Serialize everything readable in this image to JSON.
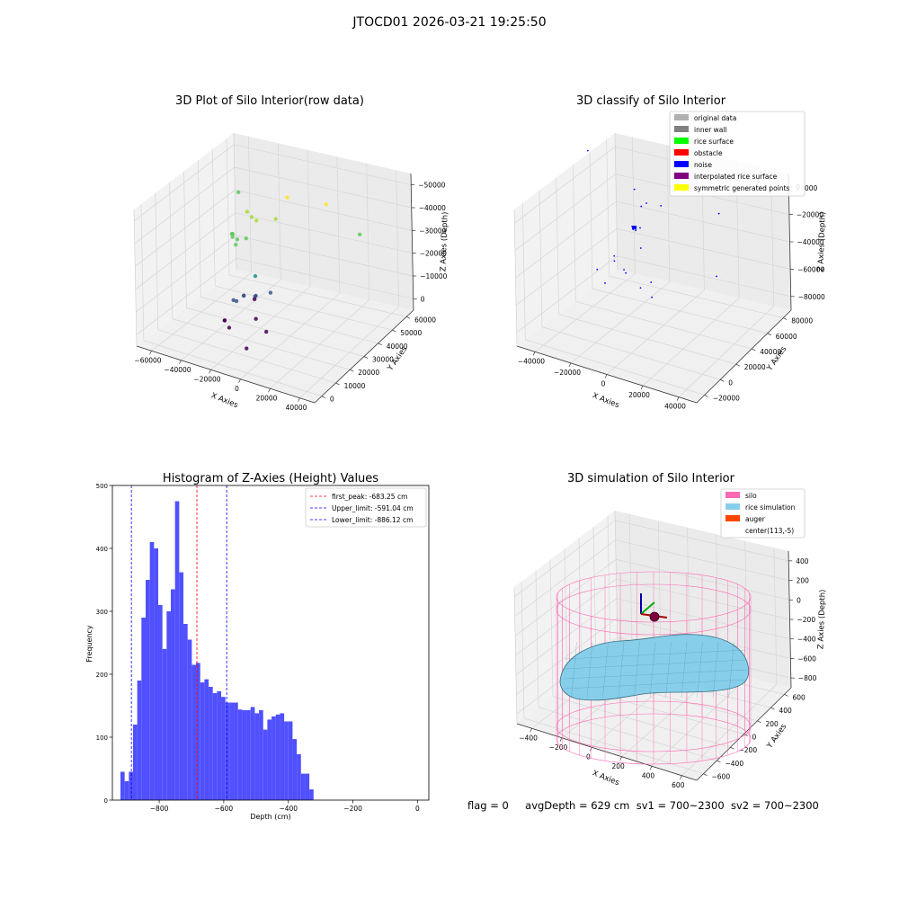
{
  "suptitle": "JTOCD01 2026-03-21 19:25:50",
  "footer": {
    "flag": "flag = 0",
    "avg": "avgDepth = 629 cm",
    "sv1": "sv1 = 700~2300",
    "sv2": "sv2 = 700~2300"
  },
  "colors": {
    "hist_bar": "#5050ff",
    "first_peak": "#ff0000",
    "limits": "#0000ff",
    "pane": "#f2f2f2",
    "silo": "#ff69b4",
    "rice": "#87ceeb",
    "auger": "#ff4500",
    "noise": "#0000ff"
  },
  "chart_data": [
    {
      "id": "raw",
      "type": "scatter",
      "title": "3D Plot of Silo Interior(row data)",
      "xlabel": "X Axies",
      "ylabel": "Y Axies",
      "zlabel": "Z Axies (Depth)",
      "xticks": [
        "−60000",
        "−40000",
        "−20000",
        "0",
        "20000",
        "40000"
      ],
      "yticks": [
        "0",
        "10000",
        "20000",
        "30000",
        "40000",
        "50000",
        "60000"
      ],
      "zticks": [
        "0",
        "−10000",
        "−20000",
        "−30000",
        "−40000",
        "−50000"
      ],
      "colormap": "viridis",
      "points": [
        {
          "x": -62000,
          "y": 60000,
          "z": -28000
        },
        {
          "x": -30000,
          "y": 35000,
          "z": -12000
        },
        {
          "x": -28000,
          "y": 36000,
          "z": -15000
        },
        {
          "x": -27000,
          "y": 38000,
          "z": -18000
        },
        {
          "x": -35000,
          "y": 30000,
          "z": -21000
        },
        {
          "x": -36000,
          "y": 31000,
          "z": -22000
        },
        {
          "x": -37000,
          "y": 31500,
          "z": -22500
        },
        {
          "x": -35500,
          "y": 30500,
          "z": -23000
        },
        {
          "x": -34000,
          "y": 32000,
          "z": -25000
        },
        {
          "x": -33000,
          "y": 30000,
          "z": -26000
        },
        {
          "x": -29000,
          "y": 33000,
          "z": -24000
        },
        {
          "x": -16000,
          "y": 40000,
          "z": -16000
        },
        {
          "x": 10000,
          "y": 48000,
          "z": -8000
        },
        {
          "x": 25000,
          "y": 55000,
          "z": -25000
        },
        {
          "x": -10000,
          "y": 42000,
          "z": -5000
        },
        {
          "x": -18000,
          "y": 28000,
          "z": -37000
        },
        {
          "x": -24000,
          "y": 26000,
          "z": -47000
        },
        {
          "x": -25000,
          "y": 27000,
          "z": -48000
        },
        {
          "x": -20000,
          "y": 30000,
          "z": -49000
        },
        {
          "x": -21000,
          "y": 30500,
          "z": -50000
        },
        {
          "x": -22000,
          "y": 31000,
          "z": -52000
        },
        {
          "x": -30000,
          "y": 25000,
          "z": -50000
        },
        {
          "x": -29000,
          "y": 26000,
          "z": -51000
        },
        {
          "x": -10000,
          "y": 30000,
          "z": -45000
        },
        {
          "x": -31000,
          "y": 20000,
          "z": -57000
        },
        {
          "x": -32000,
          "y": 21000,
          "z": -58000
        },
        {
          "x": -28000,
          "y": 20000,
          "z": -60000
        },
        {
          "x": -15000,
          "y": 25000,
          "z": -56000
        },
        {
          "x": -5000,
          "y": 22000,
          "z": -58000
        },
        {
          "x": -6000,
          "y": 10000,
          "z": -58000
        }
      ]
    },
    {
      "id": "classify",
      "type": "scatter",
      "title": "3D classify of Silo Interior",
      "xlabel": "X Axies",
      "ylabel": "Y Axies",
      "zlabel": "Z Axies (Depth)",
      "xticks": [
        "−40000",
        "−20000",
        "0",
        "20000",
        "40000"
      ],
      "yticks": [
        "−20000",
        "0",
        "20000",
        "40000",
        "60000",
        "80000"
      ],
      "zticks": [
        "−80000",
        "−60000",
        "−40000",
        "−20000",
        "0"
      ],
      "ztick_partial": "000",
      "legend": [
        {
          "label": "original data",
          "color": "#b0b0b0"
        },
        {
          "label": "inner wall",
          "color": "#808080"
        },
        {
          "label": "rice surface",
          "color": "#00ff00"
        },
        {
          "label": "obstacle",
          "color": "#ff0000"
        },
        {
          "label": "noise",
          "color": "#0000ff"
        },
        {
          "label": "interpolated rice surface",
          "color": "#800080"
        },
        {
          "label": "symmetric generated points",
          "color": "#ffff00"
        }
      ],
      "points": [
        {
          "x": -55000,
          "y": 75000,
          "z": -8000
        },
        {
          "x": -20000,
          "y": 55000,
          "z": -10000
        },
        {
          "x": -12000,
          "y": 52000,
          "z": -15000
        },
        {
          "x": -14000,
          "y": 50000,
          "z": -17000
        },
        {
          "x": -3000,
          "y": 50000,
          "z": -12000
        },
        {
          "x": 20000,
          "y": 70000,
          "z": -20000
        },
        {
          "x": -17000,
          "y": 45000,
          "z": -30000
        },
        {
          "x": -16000,
          "y": 44000,
          "z": -31000
        },
        {
          "x": -15000,
          "y": 45000,
          "z": -32000
        },
        {
          "x": -13000,
          "y": 46000,
          "z": -30000
        },
        {
          "x": -10000,
          "y": 40000,
          "z": -40000
        },
        {
          "x": -25000,
          "y": 40000,
          "z": -52000
        },
        {
          "x": -24000,
          "y": 38000,
          "z": -54000
        },
        {
          "x": -15000,
          "y": 30000,
          "z": -52000
        },
        {
          "x": -14000,
          "y": 30000,
          "z": -54000
        },
        {
          "x": -30000,
          "y": 30000,
          "z": -58000
        },
        {
          "x": -5000,
          "y": 28000,
          "z": -60000
        },
        {
          "x": 0,
          "y": 30000,
          "z": -55000
        },
        {
          "x": 5000,
          "y": 20000,
          "z": -58000
        },
        {
          "x": 25000,
          "y": 55000,
          "z": -55000
        },
        {
          "x": -22000,
          "y": 22000,
          "z": -60000
        }
      ]
    },
    {
      "id": "hist",
      "type": "bar",
      "title": "Histogram of Z-Axies (Height) Values",
      "xlabel": "Depth (cm)",
      "ylabel": "Frequency",
      "xlim": [
        -945,
        35
      ],
      "ylim": [
        0,
        500
      ],
      "xticks": [
        -800,
        -600,
        -400,
        -200,
        0
      ],
      "xtick_labels": [
        "−800",
        "−600",
        "−400",
        "−200",
        "0"
      ],
      "yticks": [
        0,
        100,
        200,
        300,
        400,
        500
      ],
      "bin_start": -920,
      "bin_width": 13,
      "values": [
        45,
        30,
        45,
        120,
        190,
        290,
        350,
        410,
        400,
        310,
        240,
        300,
        335,
        475,
        362,
        280,
        255,
        215,
        218,
        187,
        192,
        180,
        170,
        173,
        164,
        155,
        155,
        155,
        144,
        143,
        143,
        148,
        138,
        143,
        112,
        128,
        133,
        136,
        138,
        125,
        125,
        97,
        73,
        42,
        42,
        17
      ],
      "lines": [
        {
          "label": "first_peak: -683.25 cm",
          "x": -683.25,
          "color": "#ff0000"
        },
        {
          "label": "Upper_limit: -591.04 cm",
          "x": -591.04,
          "color": "#0000ff"
        },
        {
          "label": "Lower_limit: -886.12 cm",
          "x": -886.12,
          "color": "#0000ff"
        }
      ]
    },
    {
      "id": "sim",
      "type": "surface",
      "title": "3D simulation of Silo Interior",
      "xlabel": "X Axies",
      "ylabel": "Y Axies",
      "zlabel": "Z Axies (Depth)",
      "xticks": [
        "−400",
        "−200",
        "0",
        "200",
        "400",
        "600"
      ],
      "yticks": [
        "−600",
        "−400",
        "−200",
        "0",
        "200",
        "400",
        "600"
      ],
      "zticks": [
        "−800",
        "−600",
        "−400",
        "−200",
        "0",
        "200",
        "400"
      ],
      "legend": [
        {
          "label": "silo",
          "color": "#ff69b4"
        },
        {
          "label": "rice simulation",
          "color": "#87ceeb"
        },
        {
          "label": "auger",
          "color": "#ff4500"
        },
        {
          "label": "center(113,-5)",
          "color": "#ffffff"
        }
      ]
    }
  ]
}
